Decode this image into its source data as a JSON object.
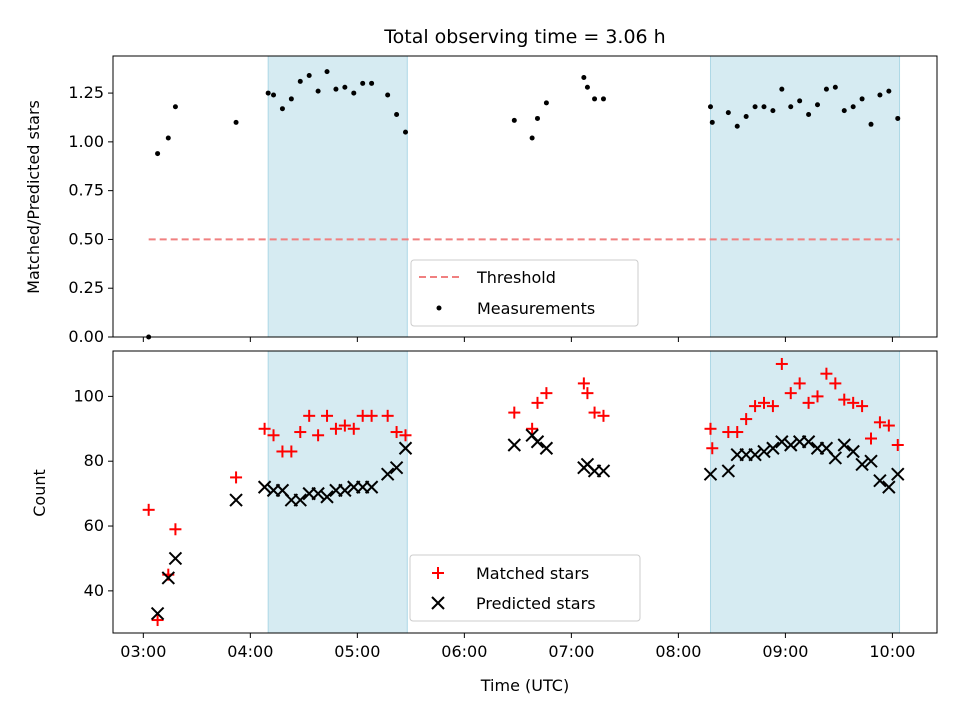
{
  "title": "Total observing time = 3.06 h",
  "chart_data": [
    {
      "type": "scatter",
      "ylabel": "Matched/Predicted stars",
      "ylim": [
        0,
        1.44
      ],
      "yticks": [
        "0.00",
        "0.25",
        "0.50",
        "0.75",
        "1.00",
        "1.25"
      ],
      "ytick_values": [
        0,
        0.25,
        0.5,
        0.75,
        1.0,
        1.25
      ],
      "xlim": [
        "02:43",
        "10:25"
      ],
      "grid": false,
      "legend_position": "bottom-center",
      "shaded_regions": [
        [
          "04:10",
          "05:28"
        ],
        [
          "08:18",
          "10:04"
        ]
      ],
      "threshold": {
        "name": "Threshold",
        "value": 0.5,
        "x_range": [
          "03:03",
          "10:04"
        ],
        "color": "#f08080"
      },
      "series": [
        {
          "name": "Measurements",
          "color": "#000000",
          "points": [
            [
              "03:03",
              0.0
            ],
            [
              "03:08",
              0.94
            ],
            [
              "03:14",
              1.02
            ],
            [
              "03:18",
              1.18
            ],
            [
              "03:52",
              1.1
            ],
            [
              "04:10",
              1.25
            ],
            [
              "04:13",
              1.24
            ],
            [
              "04:18",
              1.17
            ],
            [
              "04:23",
              1.22
            ],
            [
              "04:28",
              1.31
            ],
            [
              "04:33",
              1.34
            ],
            [
              "04:38",
              1.26
            ],
            [
              "04:43",
              1.36
            ],
            [
              "04:48",
              1.27
            ],
            [
              "04:53",
              1.28
            ],
            [
              "04:58",
              1.25
            ],
            [
              "05:03",
              1.3
            ],
            [
              "05:08",
              1.3
            ],
            [
              "05:17",
              1.24
            ],
            [
              "05:22",
              1.14
            ],
            [
              "05:27",
              1.05
            ],
            [
              "06:28",
              1.11
            ],
            [
              "06:38",
              1.02
            ],
            [
              "06:41",
              1.12
            ],
            [
              "06:46",
              1.2
            ],
            [
              "07:07",
              1.33
            ],
            [
              "07:09",
              1.28
            ],
            [
              "07:13",
              1.22
            ],
            [
              "07:18",
              1.22
            ],
            [
              "08:18",
              1.18
            ],
            [
              "08:19",
              1.1
            ],
            [
              "08:28",
              1.15
            ],
            [
              "08:33",
              1.08
            ],
            [
              "08:38",
              1.13
            ],
            [
              "08:43",
              1.18
            ],
            [
              "08:48",
              1.18
            ],
            [
              "08:53",
              1.16
            ],
            [
              "08:58",
              1.27
            ],
            [
              "09:03",
              1.18
            ],
            [
              "09:08",
              1.21
            ],
            [
              "09:13",
              1.14
            ],
            [
              "09:18",
              1.19
            ],
            [
              "09:23",
              1.27
            ],
            [
              "09:28",
              1.28
            ],
            [
              "09:33",
              1.16
            ],
            [
              "09:38",
              1.18
            ],
            [
              "09:43",
              1.22
            ],
            [
              "09:48",
              1.09
            ],
            [
              "09:53",
              1.24
            ],
            [
              "09:58",
              1.26
            ],
            [
              "10:03",
              1.12
            ]
          ]
        }
      ]
    },
    {
      "type": "scatter",
      "ylabel": "Count",
      "xlabel": "Time (UTC)",
      "ylim": [
        27,
        114
      ],
      "yticks": [
        "40",
        "60",
        "80",
        "100"
      ],
      "ytick_values": [
        40,
        60,
        80,
        100
      ],
      "xlim": [
        "02:43",
        "10:25"
      ],
      "xticks": [
        "03:00",
        "04:00",
        "05:00",
        "06:00",
        "07:00",
        "08:00",
        "09:00",
        "10:00"
      ],
      "grid": false,
      "legend_position": "bottom-center",
      "shaded_regions": [
        [
          "04:10",
          "05:28"
        ],
        [
          "08:18",
          "10:04"
        ]
      ],
      "series": [
        {
          "name": "Matched stars",
          "marker": "+",
          "color": "#ff0000",
          "points": [
            [
              "03:03",
              65
            ],
            [
              "03:08",
              31
            ],
            [
              "03:14",
              45
            ],
            [
              "03:18",
              59
            ],
            [
              "03:52",
              75
            ],
            [
              "04:08",
              90
            ],
            [
              "04:13",
              88
            ],
            [
              "04:18",
              83
            ],
            [
              "04:23",
              83
            ],
            [
              "04:28",
              89
            ],
            [
              "04:33",
              94
            ],
            [
              "04:38",
              88
            ],
            [
              "04:43",
              94
            ],
            [
              "04:48",
              90
            ],
            [
              "04:53",
              91
            ],
            [
              "04:58",
              90
            ],
            [
              "05:03",
              94
            ],
            [
              "05:08",
              94
            ],
            [
              "05:17",
              94
            ],
            [
              "05:22",
              89
            ],
            [
              "05:27",
              88
            ],
            [
              "06:28",
              95
            ],
            [
              "06:38",
              90
            ],
            [
              "06:41",
              98
            ],
            [
              "06:46",
              101
            ],
            [
              "07:07",
              104
            ],
            [
              "07:09",
              101
            ],
            [
              "07:13",
              95
            ],
            [
              "07:18",
              94
            ],
            [
              "08:18",
              90
            ],
            [
              "08:19",
              84
            ],
            [
              "08:28",
              89
            ],
            [
              "08:33",
              89
            ],
            [
              "08:38",
              93
            ],
            [
              "08:43",
              97
            ],
            [
              "08:48",
              98
            ],
            [
              "08:53",
              97
            ],
            [
              "08:58",
              110
            ],
            [
              "09:03",
              101
            ],
            [
              "09:08",
              104
            ],
            [
              "09:13",
              98
            ],
            [
              "09:18",
              100
            ],
            [
              "09:23",
              107
            ],
            [
              "09:28",
              104
            ],
            [
              "09:33",
              99
            ],
            [
              "09:38",
              98
            ],
            [
              "09:43",
              97
            ],
            [
              "09:48",
              87
            ],
            [
              "09:53",
              92
            ],
            [
              "09:58",
              91
            ],
            [
              "10:03",
              85
            ]
          ]
        },
        {
          "name": "Predicted stars",
          "marker": "x",
          "color": "#000000",
          "points": [
            [
              "03:08",
              33
            ],
            [
              "03:14",
              44
            ],
            [
              "03:18",
              50
            ],
            [
              "03:52",
              68
            ],
            [
              "04:08",
              72
            ],
            [
              "04:13",
              71
            ],
            [
              "04:18",
              71
            ],
            [
              "04:23",
              68
            ],
            [
              "04:28",
              68
            ],
            [
              "04:33",
              70
            ],
            [
              "04:38",
              70
            ],
            [
              "04:43",
              69
            ],
            [
              "04:48",
              71
            ],
            [
              "04:53",
              71
            ],
            [
              "04:58",
              72
            ],
            [
              "05:03",
              72
            ],
            [
              "05:08",
              72
            ],
            [
              "05:17",
              76
            ],
            [
              "05:22",
              78
            ],
            [
              "05:27",
              84
            ],
            [
              "06:28",
              85
            ],
            [
              "06:38",
              88
            ],
            [
              "06:41",
              86
            ],
            [
              "06:46",
              84
            ],
            [
              "07:07",
              78
            ],
            [
              "07:09",
              79
            ],
            [
              "07:13",
              77
            ],
            [
              "07:18",
              77
            ],
            [
              "08:18",
              76
            ],
            [
              "08:28",
              77
            ],
            [
              "08:33",
              82
            ],
            [
              "08:38",
              82
            ],
            [
              "08:43",
              82
            ],
            [
              "08:48",
              83
            ],
            [
              "08:53",
              84
            ],
            [
              "08:58",
              86
            ],
            [
              "09:03",
              85
            ],
            [
              "09:08",
              86
            ],
            [
              "09:13",
              86
            ],
            [
              "09:18",
              84
            ],
            [
              "09:23",
              84
            ],
            [
              "09:28",
              81
            ],
            [
              "09:33",
              85
            ],
            [
              "09:38",
              83
            ],
            [
              "09:43",
              79
            ],
            [
              "09:48",
              80
            ],
            [
              "09:53",
              74
            ],
            [
              "09:58",
              72
            ],
            [
              "10:03",
              76
            ]
          ]
        }
      ]
    }
  ]
}
